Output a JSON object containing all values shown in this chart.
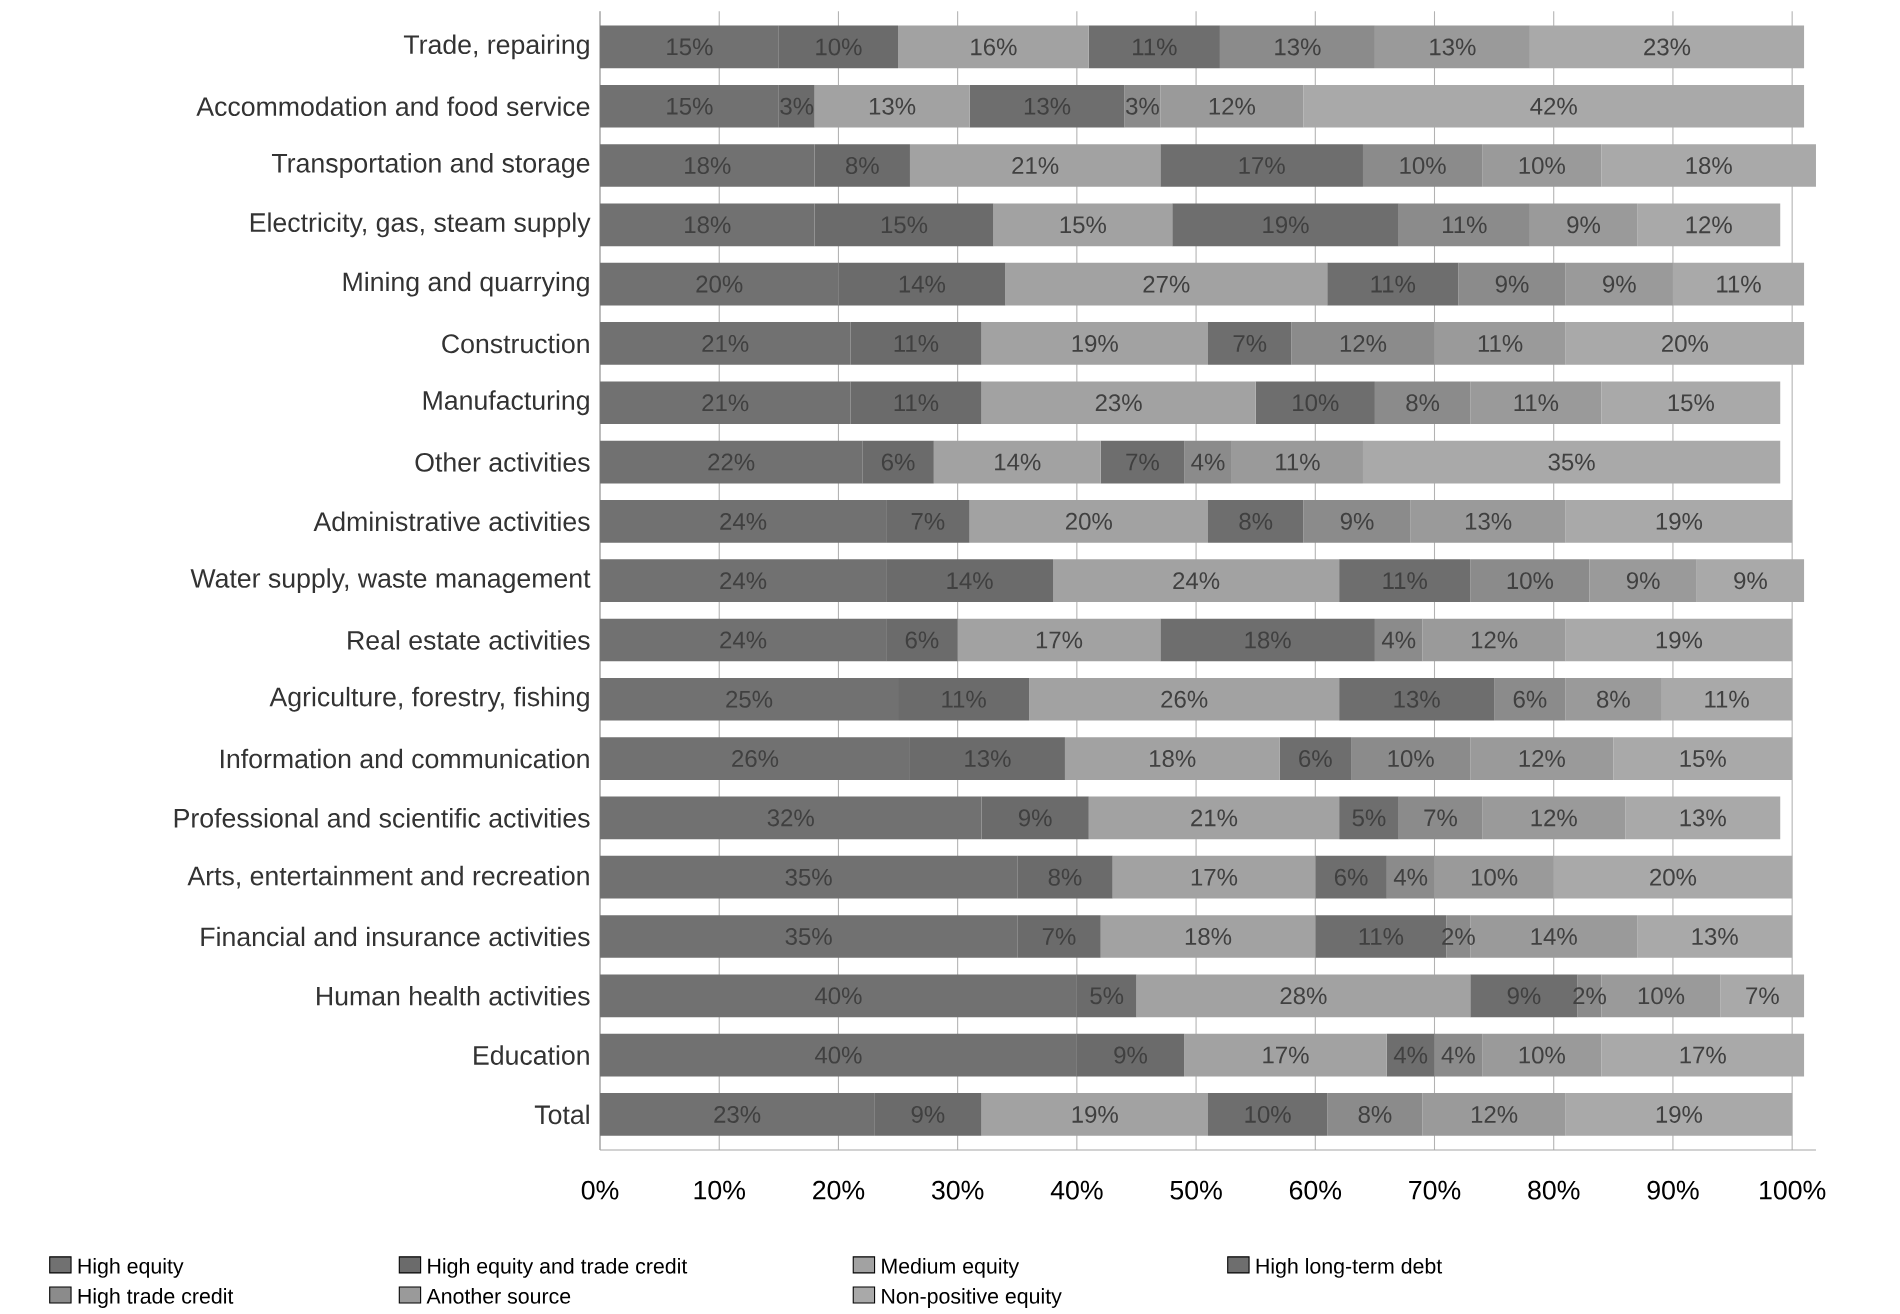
{
  "chart_data": {
    "type": "bar",
    "orientation": "horizontal",
    "stacked": true,
    "grid": "x",
    "legend": "bottom",
    "categories": [
      "Trade, repairing",
      "Accommodation and food service",
      "Transportation and storage",
      "Electricity, gas, steam supply",
      "Mining and quarrying",
      "Construction",
      "Manufacturing",
      "Other activities",
      "Administrative activities",
      "Water supply, waste management",
      "Real estate activities",
      "Agriculture, forestry, fishing",
      "Information and communication",
      "Professional and scientific activities",
      "Arts, entertainment and recreation",
      "Financial and insurance activities",
      "Human health activities",
      "Education",
      "Total"
    ],
    "xlim": [
      0,
      102
    ],
    "xticks": [
      {
        "value": 0,
        "label": "0%"
      },
      {
        "value": 10,
        "label": "10%"
      },
      {
        "value": 20,
        "label": "20%"
      },
      {
        "value": 30,
        "label": "30%"
      },
      {
        "value": 40,
        "label": "40%"
      },
      {
        "value": 50,
        "label": "50%"
      },
      {
        "value": 60,
        "label": "60%"
      },
      {
        "value": 70,
        "label": "70%"
      },
      {
        "value": 80,
        "label": "80%"
      },
      {
        "value": 90,
        "label": "90%"
      },
      {
        "value": 100,
        "label": "100%"
      }
    ],
    "series": [
      {
        "name": "High equity",
        "color": "#717171",
        "values": [
          15,
          15,
          18,
          18,
          20,
          21,
          21,
          22,
          24,
          24,
          24,
          25,
          26,
          32,
          35,
          35,
          40,
          40,
          23
        ],
        "value_labels": [
          "15%",
          "15%",
          "18%",
          "18%",
          "20%",
          "21%",
          "21%",
          "22%",
          "24%",
          "24%",
          "24%",
          "25%",
          "26%",
          "32%",
          "35%",
          "35%",
          "40%",
          "40%",
          "23%"
        ]
      },
      {
        "name": "High equity and trade credit",
        "color": "#6b6b6b",
        "values": [
          10,
          3,
          8,
          15,
          14,
          11,
          11,
          6,
          7,
          14,
          6,
          11,
          13,
          9,
          8,
          7,
          5,
          9,
          9
        ],
        "value_labels": [
          "10%",
          "3%",
          "8%",
          "15%",
          "14%",
          "11%",
          "11%",
          "6%",
          "7%",
          "14%",
          "6%",
          "11%",
          "13%",
          "9%",
          "8%",
          "7%",
          "5%",
          "9%",
          "9%"
        ]
      },
      {
        "name": "Medium equity",
        "color": "#a2a2a2",
        "values": [
          16,
          13,
          21,
          15,
          27,
          19,
          23,
          14,
          20,
          24,
          17,
          26,
          18,
          21,
          17,
          18,
          28,
          17,
          19
        ],
        "value_labels": [
          "16%",
          "13%",
          "21%",
          "15%",
          "27%",
          "19%",
          "23%",
          "14%",
          "20%",
          "24%",
          "17%",
          "26%",
          "18%",
          "21%",
          "17%",
          "18%",
          "28%",
          "17%",
          "19%"
        ]
      },
      {
        "name": "High long-term debt",
        "color": "#6e6e6e",
        "values": [
          11,
          13,
          17,
          19,
          11,
          7,
          10,
          7,
          8,
          11,
          18,
          13,
          6,
          5,
          6,
          11,
          9,
          4,
          10
        ],
        "value_labels": [
          "11%",
          "13%",
          "17%",
          "19%",
          "11%",
          "7%",
          "10%",
          "7%",
          "8%",
          "11%",
          "18%",
          "13%",
          "6%",
          "5%",
          "6%",
          "11%",
          "9%",
          "4%",
          "10%"
        ]
      },
      {
        "name": "High trade credit",
        "color": "#8b8b8b",
        "values": [
          13,
          3,
          10,
          11,
          9,
          12,
          8,
          4,
          9,
          10,
          4,
          6,
          10,
          7,
          4,
          2,
          2,
          4,
          8
        ],
        "value_labels": [
          "13%",
          "3%",
          "10%",
          "11%",
          "9%",
          "12%",
          "8%",
          "4%",
          "9%",
          "10%",
          "4%",
          "6%",
          "10%",
          "7%",
          "4%",
          "2%",
          "2%",
          "4%",
          "8%"
        ]
      },
      {
        "name": "Another source",
        "color": "#9a9a9a",
        "values": [
          13,
          12,
          10,
          9,
          9,
          11,
          11,
          11,
          13,
          9,
          12,
          8,
          12,
          12,
          10,
          14,
          10,
          10,
          12
        ],
        "value_labels": [
          "13%",
          "12%",
          "10%",
          "9%",
          "9%",
          "11%",
          "11%",
          "11%",
          "13%",
          "9%",
          "12%",
          "8%",
          "12%",
          "12%",
          "10%",
          "14%",
          "10%",
          "10%",
          "12%"
        ]
      },
      {
        "name": "Non-positive equity",
        "color": "#a9a9a9",
        "values": [
          23,
          42,
          18,
          12,
          11,
          20,
          15,
          35,
          19,
          9,
          19,
          11,
          15,
          13,
          20,
          13,
          7,
          17,
          19
        ],
        "value_labels": [
          "23%",
          "42%",
          "18%",
          "12%",
          "11%",
          "20%",
          "15%",
          "35%",
          "19%",
          "9%",
          "19%",
          "11%",
          "15%",
          "13%",
          "20%",
          "13%",
          "7%",
          "17%",
          "19%"
        ]
      }
    ]
  }
}
